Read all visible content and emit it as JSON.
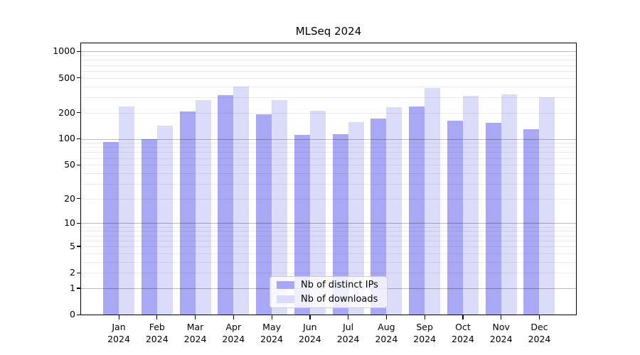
{
  "title": "MLSeq 2024",
  "colors": {
    "ips_bar": "#a8a8f5",
    "downloads_bar": "#dbdbfa",
    "grid_major": "rgba(0,0,0,0.27)",
    "grid_minor": "rgba(0,0,0,0.075)",
    "axis_frame": "#000000",
    "legend_border": "#cccccc"
  },
  "y_axis": {
    "tick_labels": [
      "1000",
      "500",
      "200",
      "100",
      "50",
      "20",
      "10",
      "5",
      "2",
      "1",
      "0"
    ],
    "tick_values": [
      1000,
      500,
      200,
      100,
      50,
      20,
      10,
      5,
      2,
      1,
      0
    ],
    "major_grid_values": [
      1,
      10,
      100,
      1000
    ],
    "minor_grid_values": [
      2,
      3,
      4,
      5,
      6,
      7,
      8,
      9,
      20,
      30,
      40,
      50,
      60,
      70,
      80,
      90,
      200,
      300,
      400,
      500,
      600,
      700,
      800,
      900
    ],
    "scale": "log10(1+v)"
  },
  "x_axis": {
    "months": [
      "Jan",
      "Feb",
      "Mar",
      "Apr",
      "May",
      "Jun",
      "Jul",
      "Aug",
      "Sep",
      "Oct",
      "Nov",
      "Dec"
    ],
    "year": "2024"
  },
  "chart_data": {
    "type": "bar",
    "title": "MLSeq 2024",
    "categories": [
      "Jan 2024",
      "Feb 2024",
      "Mar 2024",
      "Apr 2024",
      "May 2024",
      "Jun 2024",
      "Jul 2024",
      "Aug 2024",
      "Sep 2024",
      "Oct 2024",
      "Nov 2024",
      "Dec 2024"
    ],
    "series": [
      {
        "name": "Nb of distinct IPs",
        "values": [
          92,
          100,
          205,
          315,
          190,
          110,
          112,
          170,
          235,
          162,
          152,
          129
        ]
      },
      {
        "name": "Nb of downloads",
        "values": [
          234,
          142,
          277,
          398,
          276,
          211,
          156,
          231,
          379,
          311,
          322,
          301
        ]
      }
    ],
    "y_scale": "log1p",
    "y_ticks": [
      0,
      1,
      2,
      5,
      10,
      20,
      50,
      100,
      200,
      500,
      1000
    ],
    "ylim": [
      0,
      1280
    ],
    "grid": "on",
    "legend_position": "lower-center-inside"
  }
}
